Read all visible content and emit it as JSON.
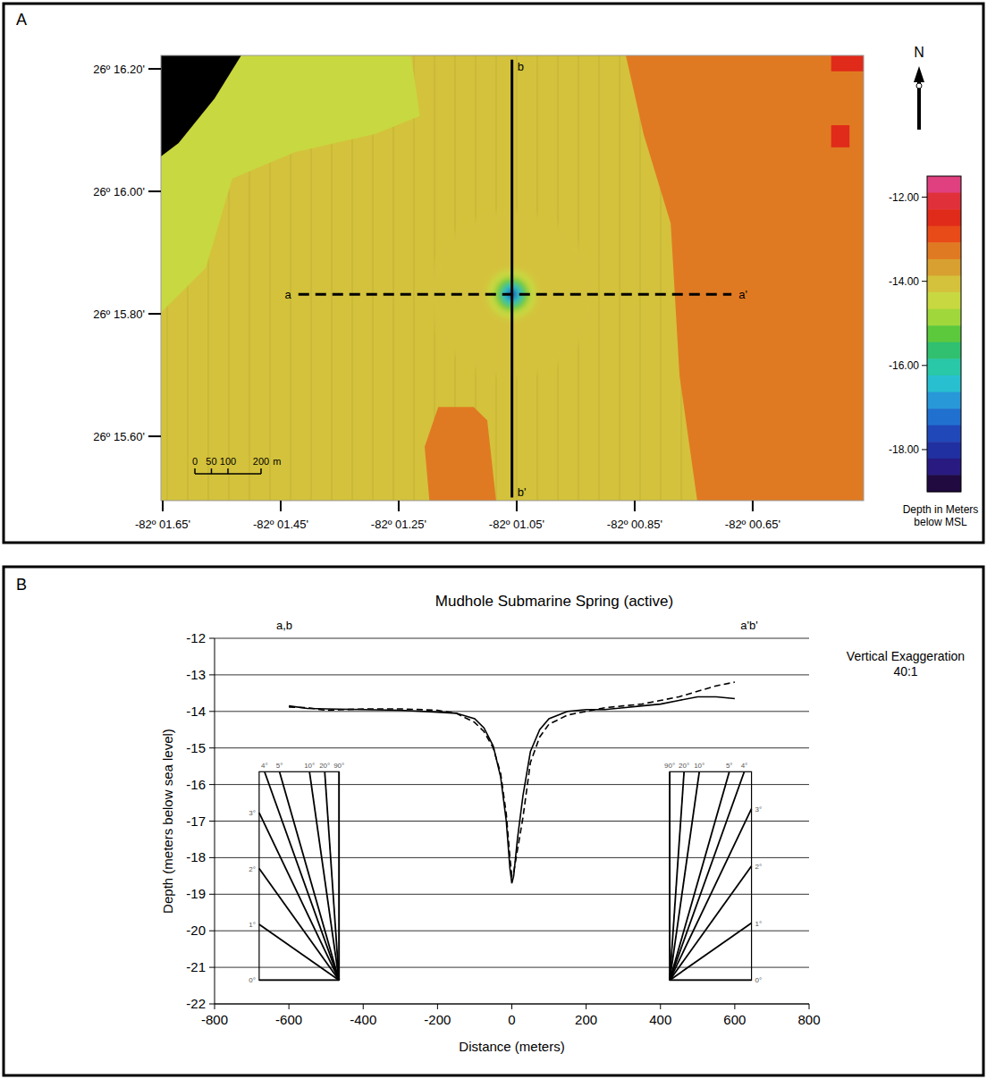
{
  "chart_data": [
    {
      "type": "map",
      "panel_label": "A",
      "xlim": [
        -1.653,
        -0.462
      ],
      "ylim": [
        15.495,
        16.222
      ],
      "xticks": [
        {
          "value": -1.65,
          "label": "-82º 01.65'"
        },
        {
          "value": -1.45,
          "label": "-82º 01.45'"
        },
        {
          "value": -1.25,
          "label": "-82º 01.25'"
        },
        {
          "value": -1.05,
          "label": "-82º 01.05'"
        },
        {
          "value": -0.85,
          "label": "-82º 00.85'"
        },
        {
          "value": -0.65,
          "label": "-82º 00.65'"
        }
      ],
      "yticks": [
        {
          "value": 16.2,
          "label": "26º 16.20'"
        },
        {
          "value": 16.0,
          "label": "26º 16.00'"
        },
        {
          "value": 15.8,
          "label": "26º 15.80'"
        },
        {
          "value": 15.6,
          "label": "26º 15.60'"
        }
      ],
      "base_depth": -13.9,
      "regions": [
        {
          "depth": -14.3,
          "polygon": [
            [
              -1.653,
              16.057
            ],
            [
              -1.623,
              16.079
            ],
            [
              -1.562,
              16.152
            ],
            [
              -1.517,
              16.222
            ],
            [
              -1.229,
              16.222
            ],
            [
              -1.214,
              16.123
            ],
            [
              -1.289,
              16.094
            ],
            [
              -1.426,
              16.064
            ],
            [
              -1.532,
              16.021
            ],
            [
              -1.577,
              15.875
            ],
            [
              -1.653,
              15.802
            ]
          ]
        },
        {
          "depth": null,
          "polygon": [
            [
              -1.653,
              16.222
            ],
            [
              -1.517,
              16.222
            ],
            [
              -1.562,
              16.152
            ],
            [
              -1.623,
              16.079
            ],
            [
              -1.653,
              16.057
            ]
          ]
        },
        {
          "depth": -13.3,
          "polygon": [
            [
              -0.865,
              16.222
            ],
            [
              -0.462,
              16.222
            ],
            [
              -0.462,
              15.495
            ],
            [
              -0.744,
              15.495
            ],
            [
              -0.774,
              15.699
            ],
            [
              -0.789,
              15.948
            ],
            [
              -0.835,
              16.094
            ]
          ]
        },
        {
          "depth": -12.6,
          "polygon": [
            [
              -0.517,
              16.222
            ],
            [
              -0.462,
              16.222
            ],
            [
              -0.462,
              16.196
            ],
            [
              -0.517,
              16.196
            ]
          ]
        },
        {
          "depth": -12.6,
          "polygon": [
            [
              -0.517,
              16.108
            ],
            [
              -0.486,
              16.108
            ],
            [
              -0.486,
              16.072
            ],
            [
              -0.517,
              16.072
            ]
          ]
        },
        {
          "depth": -13.3,
          "polygon": [
            [
              -1.183,
              15.648
            ],
            [
              -1.123,
              15.648
            ],
            [
              -1.1,
              15.626
            ],
            [
              -1.085,
              15.495
            ],
            [
              -1.198,
              15.495
            ],
            [
              -1.206,
              15.583
            ]
          ]
        }
      ],
      "spring": {
        "center": [
          -1.058,
          15.832
        ],
        "radius_m": 250
      },
      "sections": [
        {
          "start_label": "a",
          "end_label": "a'",
          "line_style": "dashed",
          "from": [
            -1.42,
            15.832
          ],
          "to": [
            -0.686,
            15.832
          ]
        },
        {
          "start_label": "b",
          "end_label": "b'",
          "line_style": "solid",
          "from": [
            -1.058,
            16.215
          ],
          "to": [
            -1.058,
            15.5
          ]
        }
      ],
      "scale_bar": {
        "ticks": [
          0,
          50,
          100,
          200
        ],
        "unit": "m"
      },
      "north_label": "N",
      "colorbar": {
        "label": "Depth in Meters below MSL",
        "range": [
          -11.5,
          -19
        ],
        "ticks": [
          {
            "value": -12,
            "label": "-12.00"
          },
          {
            "value": -14,
            "label": "-14.00"
          },
          {
            "value": -16,
            "label": "-16.00"
          },
          {
            "value": -18,
            "label": "-18.00"
          }
        ],
        "colors": [
          "#e0407f",
          "#e0303a",
          "#e02a1a",
          "#e84a18",
          "#e07a22",
          "#d8a030",
          "#d4c23c",
          "#c8d840",
          "#a0d83c",
          "#5cc83c",
          "#30c070",
          "#28c8a8",
          "#28c0d0",
          "#2898d8",
          "#2070d0",
          "#2048b8",
          "#2030a0",
          "#281a80",
          "#200a40"
        ]
      }
    },
    {
      "type": "line",
      "panel_label": "B",
      "title": "Mudhole Submarine Spring (active)",
      "x_label": "Distance (meters)",
      "y_label": "Depth (meters below sea level)",
      "xlim": [
        -800,
        800
      ],
      "ylim": [
        -22,
        -12
      ],
      "xticks": [
        -800,
        -600,
        -400,
        -200,
        0,
        200,
        400,
        600,
        800
      ],
      "yticks": [
        -22,
        -21,
        -20,
        -19,
        -18,
        -17,
        -16,
        -15,
        -14,
        -13,
        -12
      ],
      "grid": true,
      "x": [
        -600,
        -550,
        -500,
        -400,
        -300,
        -200,
        -150,
        -100,
        -75,
        -50,
        -30,
        -15,
        -5,
        0,
        5,
        15,
        30,
        50,
        75,
        100,
        150,
        200,
        250,
        300,
        350,
        400,
        450,
        500,
        550,
        600
      ],
      "series": [
        {
          "color": "#000000",
          "line_style": "solid",
          "values": [
            -13.85,
            -13.92,
            -13.93,
            -13.95,
            -13.97,
            -14.02,
            -14.05,
            -14.2,
            -14.45,
            -14.95,
            -15.8,
            -17.0,
            -18.3,
            -18.7,
            -18.5,
            -17.5,
            -16.3,
            -15.1,
            -14.5,
            -14.2,
            -14.0,
            -13.95,
            -13.95,
            -13.9,
            -13.85,
            -13.8,
            -13.7,
            -13.6,
            -13.6,
            -13.65
          ]
        },
        {
          "color": "#000000",
          "line_style": "dashed",
          "values": [
            -13.88,
            -13.9,
            -13.97,
            -13.93,
            -13.93,
            -13.97,
            -14.05,
            -14.3,
            -14.55,
            -15.0,
            -15.7,
            -16.8,
            -18.0,
            -18.5,
            -18.4,
            -17.8,
            -16.9,
            -15.4,
            -14.7,
            -14.35,
            -14.1,
            -14.0,
            -13.9,
            -13.85,
            -13.8,
            -13.7,
            -13.6,
            -13.45,
            -13.3,
            -13.2
          ]
        }
      ],
      "end_labels": [
        "a,b",
        "a'b'"
      ],
      "vertical_exaggeration": {
        "value": 40,
        "label": [
          "Vertical Exaggeration",
          "40:1"
        ]
      },
      "slope_guides": {
        "angles": [
          0,
          1,
          2,
          3,
          4,
          5,
          10,
          20,
          90
        ],
        "labels": [
          "0°",
          "1°",
          "2°",
          "3°",
          "4°",
          "5°",
          "10°",
          "20°",
          "90°"
        ],
        "boxes": [
          {
            "x": [
              -680,
              -465
            ],
            "y": [
              -21.35,
              -15.65
            ]
          },
          {
            "x": [
              425,
              645
            ],
            "y": [
              -21.35,
              -15.65
            ]
          }
        ]
      }
    }
  ]
}
